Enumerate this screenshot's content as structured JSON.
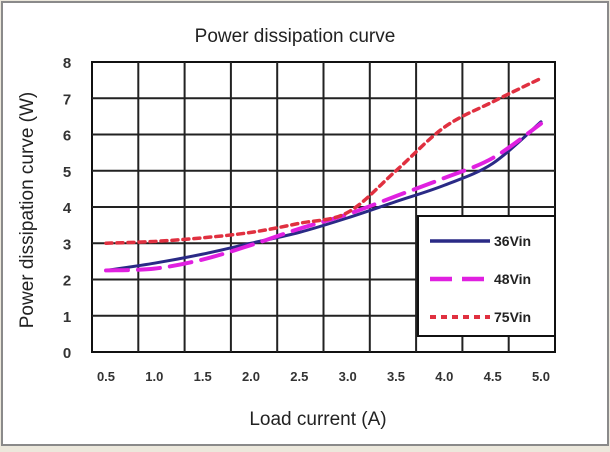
{
  "chart_data": {
    "type": "line",
    "title": "Power dissipation curve",
    "xlabel": "Load current (A)",
    "ylabel": "Power dissipation curve (W)",
    "x_ticks": [
      "0.5",
      "1.0",
      "1.5",
      "2.0",
      "2.5",
      "3.0",
      "3.5",
      "4.0",
      "4.5",
      "5.0"
    ],
    "y_ticks": [
      "0",
      "1",
      "2",
      "3",
      "4",
      "5",
      "6",
      "7",
      "8"
    ],
    "xlim": [
      0.5,
      5.0
    ],
    "ylim": [
      0,
      8
    ],
    "grid": true,
    "legend_position": "bottom-right",
    "series": [
      {
        "name": "36Vin",
        "color": "#2a2a86",
        "style": "solid",
        "x": [
          0.5,
          1.0,
          1.5,
          2.0,
          2.5,
          3.0,
          3.5,
          4.0,
          4.5,
          5.0
        ],
        "values": [
          2.25,
          2.45,
          2.7,
          3.0,
          3.3,
          3.7,
          4.15,
          4.6,
          5.2,
          6.35
        ]
      },
      {
        "name": "48Vin",
        "color": "#e020e0",
        "style": "long-dash",
        "x": [
          0.5,
          1.0,
          1.5,
          2.0,
          2.5,
          3.0,
          3.5,
          4.0,
          4.5,
          5.0
        ],
        "values": [
          2.25,
          2.3,
          2.55,
          2.95,
          3.4,
          3.8,
          4.3,
          4.8,
          5.35,
          6.3
        ]
      },
      {
        "name": "75Vin",
        "color": "#e03040",
        "style": "short-dash",
        "x": [
          0.5,
          1.0,
          1.5,
          2.0,
          2.5,
          3.0,
          3.5,
          4.0,
          4.5,
          5.0
        ],
        "values": [
          3.0,
          3.05,
          3.15,
          3.3,
          3.55,
          3.85,
          5.0,
          6.2,
          6.9,
          7.55
        ]
      }
    ]
  }
}
